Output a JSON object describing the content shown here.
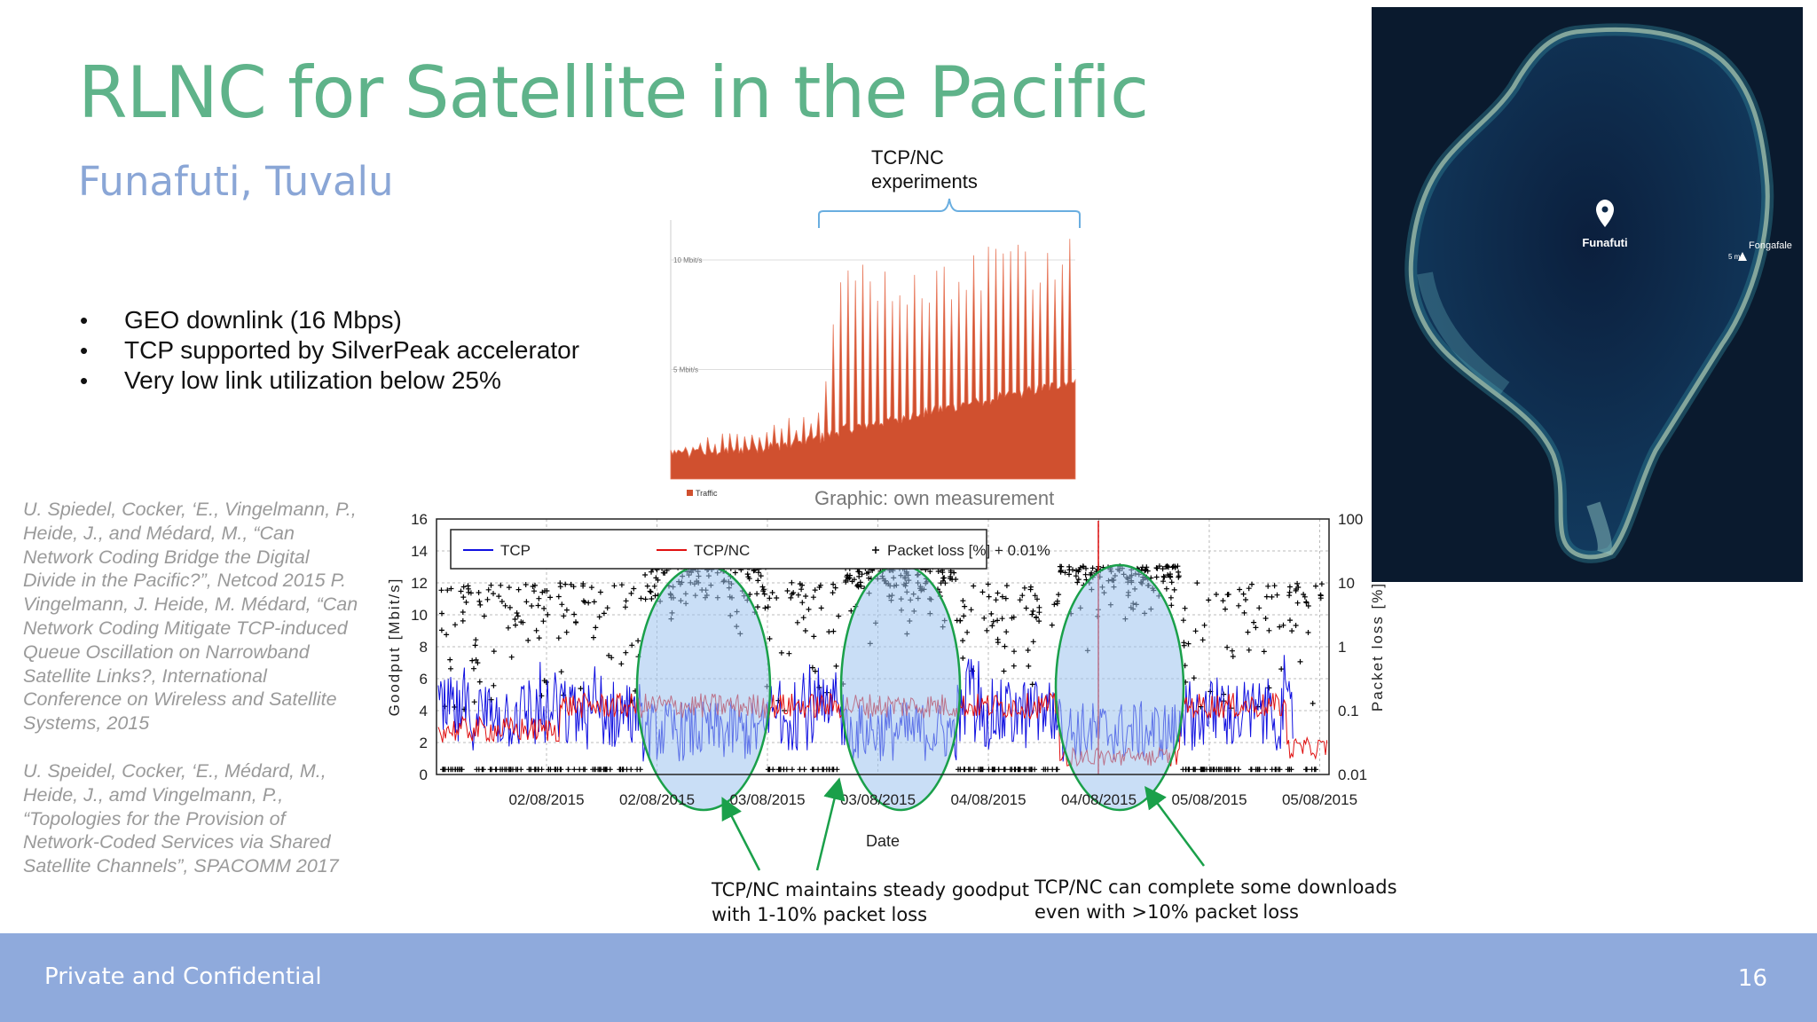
{
  "slide": {
    "title": "RLNC for Satellite in the Pacific",
    "subtitle": "Funafuti, Tuvalu",
    "bullets": [
      "GEO downlink (16 Mbps)",
      "TCP supported by SilverPeak accelerator",
      "Very low link utilization below 25%"
    ],
    "references": [
      "U. Spiedel, Cocker, ‘E., Vingelmann, P., Heide, J., and Médard, M., “Can Network Coding Bridge the Digital Divide in the Pacific?”, Netcod 2015 P. Vingelmann, J. Heide, M. Médard, “Can Network Coding Mitigate TCP-induced Queue Oscillation on Narrowband Satellite Links?, International Conference on Wireless and Satellite Systems, 2015",
      "U. Speidel, Cocker, ‘E., Médard, M., Heide, J., amd Vingelmann, P., “Topologies for the Provision of Network-Coded Services via Shared Satellite Channels”, SPACOMM 2017"
    ],
    "annotation_top": [
      "TCP/NC",
      "experiments"
    ],
    "graphic_caption": "Graphic: own measurement",
    "callouts": [
      [
        "TCP/NC maintains steady goodput",
        "with 1-10% packet loss"
      ],
      [
        "TCP/NC can complete some downloads",
        "even with >10% packet loss"
      ]
    ],
    "footer": "Private and Confidential",
    "page_number": "16"
  },
  "map": {
    "labels": {
      "main": "Funafuti",
      "town": "Fongafale",
      "scale": "5 m"
    },
    "colors": {
      "ocean": "#0a1a2e",
      "lagoon": "#0f2a4a",
      "reef": "#c9c6a4"
    }
  },
  "colors": {
    "title": "#5fb38a",
    "subtitle": "#8aa6d6",
    "footer": "#8faadc",
    "traffic": "#d0502f",
    "tcp": "#1010e0",
    "tcpnc": "#e01010",
    "ellipse_stroke": "#1aa04a",
    "ellipse_fill": "#9cc2ee"
  },
  "chart_data": [
    {
      "type": "area",
      "ytick_labels": [
        "10 Mbit/s",
        "5 Mbit/s"
      ],
      "yticks": [
        10,
        5
      ],
      "ylim": [
        0,
        11.5
      ],
      "legend": [
        "Traffic"
      ],
      "series": [
        {
          "name": "Traffic",
          "baseline_mbit": [
            0.8,
            0.9,
            1.0,
            1.1,
            1.2,
            1.3,
            1.4,
            1.6,
            2.0,
            2.2,
            2.4,
            2.6,
            2.8,
            3.0,
            3.2,
            3.4,
            3.6,
            3.8,
            4.0,
            4.4
          ],
          "peaks_mbit": [
            1.6,
            1.8,
            2.0,
            2.2,
            2.4,
            2.6,
            3.0,
            3.3,
            9.8,
            10.0,
            9.5,
            10.2,
            9.9,
            10.5,
            10.3,
            10.7,
            11.0,
            10.8,
            11.3,
            11.2
          ]
        }
      ]
    },
    {
      "type": "line",
      "xlabel": "Date",
      "ylabel": "Goodput [Mbit/s]",
      "ylabel_right": "Packet loss [%]",
      "x_tick_labels": [
        "02/08/2015",
        "02/08/2015",
        "03/08/2015",
        "03/08/2015",
        "04/08/2015",
        "04/08/2015",
        "05/08/2015",
        "05/08/2015"
      ],
      "y_ticks": [
        0,
        2,
        4,
        6,
        8,
        10,
        12,
        14,
        16
      ],
      "ylim": [
        0,
        16
      ],
      "y_right_tick_labels": [
        "0.01",
        "0.1",
        "1",
        "10",
        "100"
      ],
      "y_right_ticks": [
        0.01,
        0.1,
        1,
        10,
        100
      ],
      "y_right_scale": "log",
      "legend": [
        "TCP",
        "TCP/NC",
        "Packet loss [%] + 0.01%"
      ],
      "legend_position": "top",
      "grid": true,
      "experiment_periods": [
        {
          "label": "TCP/NC period 1"
        },
        {
          "label": "TCP/NC period 2"
        },
        {
          "label": "TCP/NC period 3"
        }
      ]
    }
  ]
}
